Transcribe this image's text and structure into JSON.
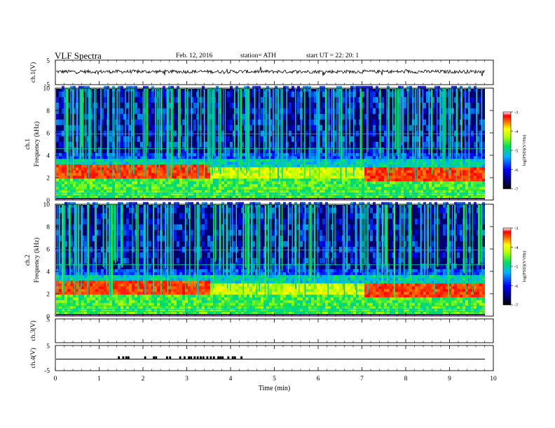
{
  "header": {
    "title": "VLF  Spectra",
    "date": "Feb. 12, 2016",
    "station": "station= ATH",
    "start_ut": "start  UT  =   22: 20: 1"
  },
  "chart_data": [
    {
      "type": "line",
      "ylabel": "ch.1(V)",
      "ylim": [
        -5,
        5
      ],
      "yticks": [
        "5",
        "-5"
      ],
      "series": [
        {
          "values": "noisy trace near +0.5 V across 0–9.8 min"
        }
      ]
    },
    {
      "type": "heatmap",
      "ylabel": "ch.1\nFrequency  (kHz)",
      "ylim": [
        0,
        10
      ],
      "yticks": [
        "0",
        "2",
        "4",
        "6",
        "8",
        "10"
      ],
      "colorbar": {
        "label": "log(PSD)(V²/Hz)",
        "range": [
          -7,
          -3
        ],
        "ticks": [
          "-3",
          "-4",
          "-5",
          "-6",
          "-7"
        ]
      }
    },
    {
      "type": "heatmap",
      "ylabel": "ch.2\nFrequency  (kHz)",
      "ylim": [
        0,
        10
      ],
      "yticks": [
        "0",
        "2",
        "4",
        "6",
        "8",
        "10"
      ],
      "colorbar": {
        "label": "log(PSD)(V²/Hz)",
        "range": [
          -7,
          -3
        ],
        "ticks": [
          "-3",
          "-4",
          "-5",
          "-6",
          "-7"
        ]
      }
    },
    {
      "type": "line",
      "ylabel": "ch.3(V)",
      "yticks": [
        "5"
      ],
      "series": [
        {
          "values": "no signal"
        }
      ]
    },
    {
      "type": "line",
      "ylabel": "ch.4(V)",
      "ylim": [
        -5,
        5
      ],
      "yticks": [
        "5",
        "-5"
      ],
      "series": [
        {
          "values": "baseline near 0 V with short pulses between 1.4 and 4.3 min"
        }
      ],
      "pulse_times_min": [
        1.45,
        1.55,
        1.62,
        1.67,
        2.05,
        2.25,
        2.3,
        2.55,
        2.62,
        2.85,
        2.95,
        3.05,
        3.1,
        3.18,
        3.25,
        3.32,
        3.38,
        3.47,
        3.55,
        3.62,
        3.72,
        3.77,
        3.82,
        3.95,
        4.05,
        4.1,
        4.25
      ]
    }
  ],
  "xaxis": {
    "label": "Time  (min)",
    "range": [
      0,
      10
    ],
    "ticks": [
      "0",
      "1",
      "2",
      "3",
      "4",
      "5",
      "6",
      "7",
      "8",
      "9",
      "10"
    ]
  }
}
